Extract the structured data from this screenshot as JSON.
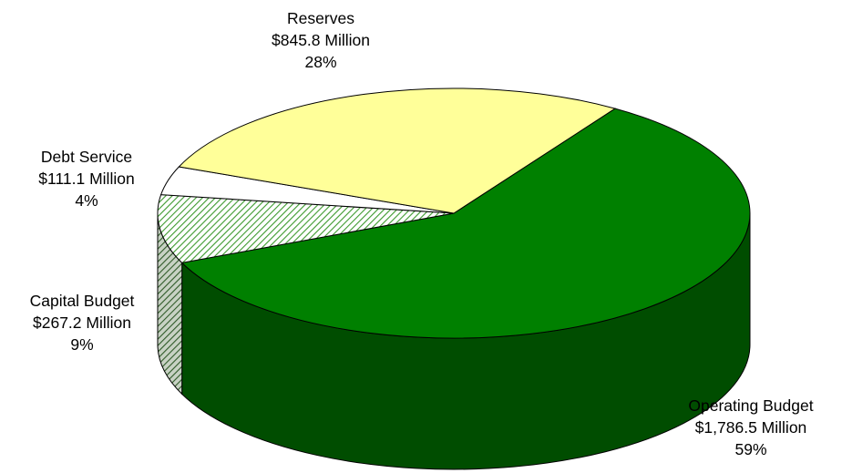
{
  "chart_data": {
    "type": "pie",
    "title": "",
    "slices": [
      {
        "label": "Operating Budget",
        "value_text": "$1,786.5 Million",
        "value": 1786.5,
        "percent": 59,
        "percent_text": "59%",
        "color": "#008000",
        "side_color": "#004d00",
        "pattern": "solid"
      },
      {
        "label": "Capital Budget",
        "value_text": "$267.2 Million",
        "value": 267.2,
        "percent": 9,
        "percent_text": "9%",
        "color": "#9acd88",
        "side_color": "#5d7a52",
        "pattern": "diagonal-hatch"
      },
      {
        "label": "Debt Service",
        "value_text": "$111.1 Million",
        "value": 111.1,
        "percent": 4,
        "percent_text": "4%",
        "color": "#ffffff",
        "side_color": "#ffffff",
        "pattern": "solid"
      },
      {
        "label": "Reserves",
        "value_text": "$845.8 Million",
        "value": 845.8,
        "percent": 28,
        "percent_text": "28%",
        "color": "#ffff99",
        "side_color": "#cccc7a",
        "pattern": "solid"
      }
    ],
    "style": "3d-pie",
    "legend": "none"
  }
}
